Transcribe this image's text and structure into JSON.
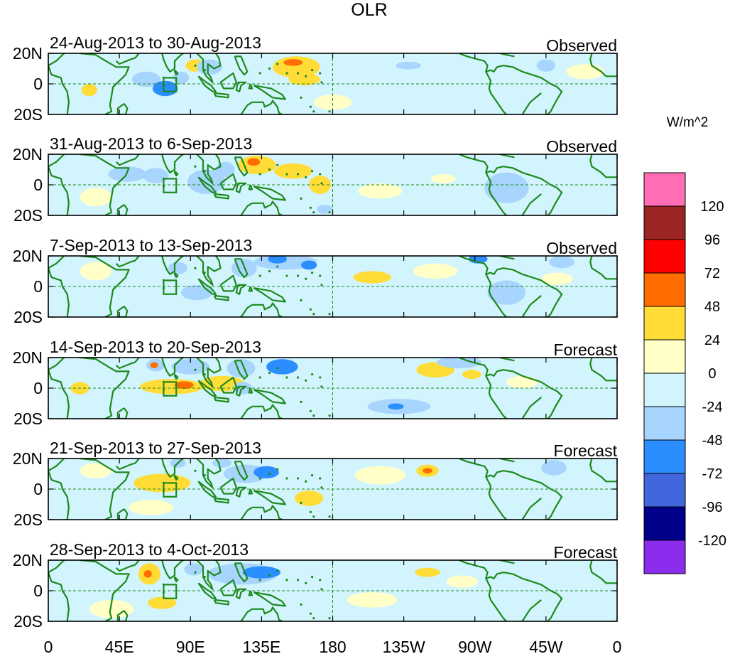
{
  "chart_data": {
    "type": "heatmap",
    "title": "OLR",
    "units": "W/m^2",
    "x_tick_labels": [
      "0",
      "45E",
      "90E",
      "135E",
      "180",
      "135W",
      "90W",
      "45W",
      "0"
    ],
    "x_tick_lons": [
      0,
      45,
      90,
      135,
      180,
      225,
      270,
      315,
      360
    ],
    "y_tick_labels": [
      "20N",
      "0",
      "20S"
    ],
    "y_tick_lats": [
      20,
      0,
      -20
    ],
    "lon_range": [
      0,
      360
    ],
    "lat_range": [
      -20,
      20
    ],
    "colorbar": {
      "levels": [
        "120",
        "96",
        "72",
        "48",
        "24",
        "0",
        "-24",
        "-48",
        "-72",
        "-96",
        "-120"
      ],
      "colors": [
        "#ff6eb4",
        "#9b2523",
        "#ff0000",
        "#ff6d00",
        "#ffdc36",
        "#ffffc7",
        "#d2f4fd",
        "#a7d5fd",
        "#2b8eff",
        "#4166dd",
        "#00008a",
        "#8c2ded"
      ]
    },
    "panels": [
      {
        "period": "24-Aug-2013 to 30-Aug-2013",
        "label": "Observed",
        "blobs": [
          {
            "lon": 157,
            "lat": 11,
            "rlon": 15,
            "rlat": 7,
            "v": 40
          },
          {
            "lon": 155,
            "lat": 14,
            "rlon": 6,
            "rlat": 2.2,
            "v": 60
          },
          {
            "lon": 162,
            "lat": 3,
            "rlon": 10,
            "rlat": 4,
            "v": 28
          },
          {
            "lon": 93,
            "lat": 12,
            "rlon": 6,
            "rlat": 4,
            "v": 28
          },
          {
            "lon": 62,
            "lat": 3,
            "rlon": 9,
            "rlat": 5,
            "v": -36
          },
          {
            "lon": 74,
            "lat": -3,
            "rlon": 8,
            "rlat": 5,
            "v": -58
          },
          {
            "lon": 84,
            "lat": 4,
            "rlon": 5,
            "rlat": 4,
            "v": -30
          },
          {
            "lon": 102,
            "lat": 11,
            "rlon": 8,
            "rlat": 5,
            "v": -30
          },
          {
            "lon": 228,
            "lat": 12,
            "rlon": 8,
            "rlat": 2.5,
            "v": -30
          },
          {
            "lon": 210,
            "lat": 5,
            "rlon": 14,
            "rlat": 6,
            "v": -14
          },
          {
            "lon": 300,
            "lat": -4,
            "rlon": 20,
            "rlat": 8,
            "v": -14
          },
          {
            "lon": 315,
            "lat": 12,
            "rlon": 6,
            "rlat": 4,
            "v": -28
          },
          {
            "lon": 26,
            "lat": -4,
            "rlon": 5,
            "rlat": 4,
            "v": 28
          },
          {
            "lon": 120,
            "lat": -14,
            "rlon": 10,
            "rlat": 5,
            "v": -14
          },
          {
            "lon": 180,
            "lat": -12,
            "rlon": 12,
            "rlat": 5,
            "v": 12
          },
          {
            "lon": 340,
            "lat": 8,
            "rlon": 12,
            "rlat": 5,
            "v": 12
          }
        ]
      },
      {
        "period": "31-Aug-2013 to 6-Sep-2013",
        "label": "Observed",
        "blobs": [
          {
            "lon": 132,
            "lat": 13,
            "rlon": 12,
            "rlat": 6,
            "v": 38
          },
          {
            "lon": 130,
            "lat": 15,
            "rlon": 4,
            "rlat": 2.5,
            "v": 62
          },
          {
            "lon": 155,
            "lat": 9,
            "rlon": 12,
            "rlat": 5,
            "v": 30
          },
          {
            "lon": 172,
            "lat": 0,
            "rlon": 7,
            "rlat": 6,
            "v": 28
          },
          {
            "lon": 175,
            "lat": -16,
            "rlon": 5,
            "rlat": 3,
            "v": -26
          },
          {
            "lon": 50,
            "lat": 7,
            "rlon": 12,
            "rlat": 5,
            "v": -28
          },
          {
            "lon": 68,
            "lat": 6,
            "rlon": 8,
            "rlat": 5,
            "v": -34
          },
          {
            "lon": 100,
            "lat": 2,
            "rlon": 12,
            "rlat": 8,
            "v": -36
          },
          {
            "lon": 112,
            "lat": 10,
            "rlon": 6,
            "rlat": 5,
            "v": -32
          },
          {
            "lon": 290,
            "lat": -2,
            "rlon": 14,
            "rlat": 10,
            "v": -30
          },
          {
            "lon": 225,
            "lat": 12,
            "rlon": 6,
            "rlat": 4,
            "v": -14
          },
          {
            "lon": 250,
            "lat": 4,
            "rlon": 8,
            "rlat": 3,
            "v": 14
          },
          {
            "lon": 340,
            "lat": 12,
            "rlon": 10,
            "rlat": 5,
            "v": -14
          },
          {
            "lon": 30,
            "lat": -8,
            "rlon": 10,
            "rlat": 6,
            "v": 12
          },
          {
            "lon": 210,
            "lat": -4,
            "rlon": 14,
            "rlat": 5,
            "v": 12
          }
        ]
      },
      {
        "period": "7-Sep-2013 to 13-Sep-2013",
        "label": "Observed",
        "blobs": [
          {
            "lon": 150,
            "lat": 16,
            "rlon": 20,
            "rlat": 5,
            "v": -36
          },
          {
            "lon": 145,
            "lat": 18,
            "rlon": 6,
            "rlat": 3,
            "v": -58
          },
          {
            "lon": 165,
            "lat": 14,
            "rlon": 5,
            "rlat": 3,
            "v": -50
          },
          {
            "lon": 124,
            "lat": 12,
            "rlon": 8,
            "rlat": 6,
            "v": -36
          },
          {
            "lon": 82,
            "lat": 12,
            "rlon": 6,
            "rlat": 4,
            "v": -30
          },
          {
            "lon": 94,
            "lat": -4,
            "rlon": 10,
            "rlat": 5,
            "v": -44
          },
          {
            "lon": 62,
            "lat": -6,
            "rlon": 10,
            "rlat": 6,
            "v": -24
          },
          {
            "lon": 133,
            "lat": -6,
            "rlon": 8,
            "rlat": 5,
            "v": -24
          },
          {
            "lon": 205,
            "lat": 6,
            "rlon": 12,
            "rlat": 4,
            "v": 26
          },
          {
            "lon": 245,
            "lat": 10,
            "rlon": 14,
            "rlat": 5,
            "v": 22
          },
          {
            "lon": 272,
            "lat": 18,
            "rlon": 6,
            "rlat": 3,
            "v": -54
          },
          {
            "lon": 290,
            "lat": -4,
            "rlon": 12,
            "rlat": 8,
            "v": -26
          },
          {
            "lon": 325,
            "lat": 16,
            "rlon": 8,
            "rlat": 4,
            "v": -44
          },
          {
            "lon": 322,
            "lat": 5,
            "rlon": 10,
            "rlat": 4,
            "v": 14
          },
          {
            "lon": 30,
            "lat": 10,
            "rlon": 10,
            "rlat": 6,
            "v": 12
          }
        ]
      },
      {
        "period": "14-Sep-2013 to 20-Sep-2013",
        "label": "Forecast",
        "blobs": [
          {
            "lon": 78,
            "lat": 1,
            "rlon": 20,
            "rlat": 5,
            "v": 36
          },
          {
            "lon": 86,
            "lat": 2,
            "rlon": 6,
            "rlat": 2.5,
            "v": 64
          },
          {
            "lon": 110,
            "lat": 3,
            "rlon": 14,
            "rlat": 5,
            "v": 26
          },
          {
            "lon": 68,
            "lat": 15,
            "rlon": 6,
            "rlat": 4,
            "v": -46
          },
          {
            "lon": 67,
            "lat": 15,
            "rlon": 2.5,
            "rlat": 2,
            "v": 70
          },
          {
            "lon": 90,
            "lat": 14,
            "rlon": 12,
            "rlat": 5,
            "v": -44
          },
          {
            "lon": 122,
            "lat": 13,
            "rlon": 9,
            "rlat": 6,
            "v": -48
          },
          {
            "lon": 148,
            "lat": 14,
            "rlon": 10,
            "rlat": 5,
            "v": -56
          },
          {
            "lon": 123,
            "lat": 0,
            "rlon": 6,
            "rlat": 4,
            "v": -40
          },
          {
            "lon": 245,
            "lat": 12,
            "rlon": 12,
            "rlat": 5,
            "v": 36
          },
          {
            "lon": 268,
            "lat": 9,
            "rlon": 6,
            "rlat": 3,
            "v": 30
          },
          {
            "lon": 260,
            "lat": 17,
            "rlon": 14,
            "rlat": 4,
            "v": -30
          },
          {
            "lon": 222,
            "lat": -12,
            "rlon": 20,
            "rlat": 5,
            "v": -30
          },
          {
            "lon": 220,
            "lat": -12,
            "rlon": 5,
            "rlat": 2,
            "v": -54
          },
          {
            "lon": 20,
            "lat": 0,
            "rlon": 6,
            "rlat": 4,
            "v": 26
          },
          {
            "lon": 300,
            "lat": 4,
            "rlon": 10,
            "rlat": 4,
            "v": 12
          },
          {
            "lon": 70,
            "lat": -14,
            "rlon": 16,
            "rlat": 5,
            "v": -14
          }
        ]
      },
      {
        "period": "21-Sep-2013 to 27-Sep-2013",
        "label": "Forecast",
        "blobs": [
          {
            "lon": 72,
            "lat": 4,
            "rlon": 18,
            "rlat": 6,
            "v": 32
          },
          {
            "lon": 165,
            "lat": -6,
            "rlon": 9,
            "rlat": 5,
            "v": 30
          },
          {
            "lon": 65,
            "lat": -12,
            "rlon": 14,
            "rlat": 5,
            "v": 14
          },
          {
            "lon": 125,
            "lat": 10,
            "rlon": 14,
            "rlat": 6,
            "v": -36
          },
          {
            "lon": 138,
            "lat": 11,
            "rlon": 8,
            "rlat": 4,
            "v": -58
          },
          {
            "lon": 82,
            "lat": 17,
            "rlon": 5,
            "rlat": 3,
            "v": -44
          },
          {
            "lon": 110,
            "lat": 17,
            "rlon": 6,
            "rlat": 3,
            "v": -30
          },
          {
            "lon": 240,
            "lat": 12,
            "rlon": 7,
            "rlat": 4,
            "v": 40
          },
          {
            "lon": 240,
            "lat": 12,
            "rlon": 3,
            "rlat": 1.8,
            "v": 64
          },
          {
            "lon": 320,
            "lat": 14,
            "rlon": 8,
            "rlat": 5,
            "v": -32
          },
          {
            "lon": 290,
            "lat": 2,
            "rlon": 12,
            "rlat": 6,
            "v": -14
          },
          {
            "lon": 210,
            "lat": 9,
            "rlon": 16,
            "rlat": 6,
            "v": 12
          },
          {
            "lon": 30,
            "lat": 12,
            "rlon": 10,
            "rlat": 5,
            "v": 12
          }
        ]
      },
      {
        "period": "28-Sep-2013 to 4-Oct-2013",
        "label": "Forecast",
        "blobs": [
          {
            "lon": 64,
            "lat": 11,
            "rlon": 7,
            "rlat": 7,
            "v": 40
          },
          {
            "lon": 63,
            "lat": 11,
            "rlon": 2.5,
            "rlat": 2.5,
            "v": 62
          },
          {
            "lon": 123,
            "lat": 11,
            "rlon": 22,
            "rlat": 7,
            "v": -40
          },
          {
            "lon": 135,
            "lat": 12,
            "rlon": 12,
            "rlat": 4,
            "v": -58
          },
          {
            "lon": 92,
            "lat": 14,
            "rlon": 6,
            "rlat": 4,
            "v": -28
          },
          {
            "lon": 72,
            "lat": -8,
            "rlon": 9,
            "rlat": 4,
            "v": 26
          },
          {
            "lon": 240,
            "lat": 12,
            "rlon": 8,
            "rlat": 3,
            "v": 26
          },
          {
            "lon": 262,
            "lat": 6,
            "rlon": 10,
            "rlat": 4,
            "v": 12
          },
          {
            "lon": 320,
            "lat": 12,
            "rlon": 8,
            "rlat": 4,
            "v": -14
          },
          {
            "lon": 40,
            "lat": -12,
            "rlon": 14,
            "rlat": 6,
            "v": 12
          },
          {
            "lon": 205,
            "lat": -6,
            "rlon": 16,
            "rlat": 5,
            "v": 12
          }
        ]
      }
    ]
  }
}
